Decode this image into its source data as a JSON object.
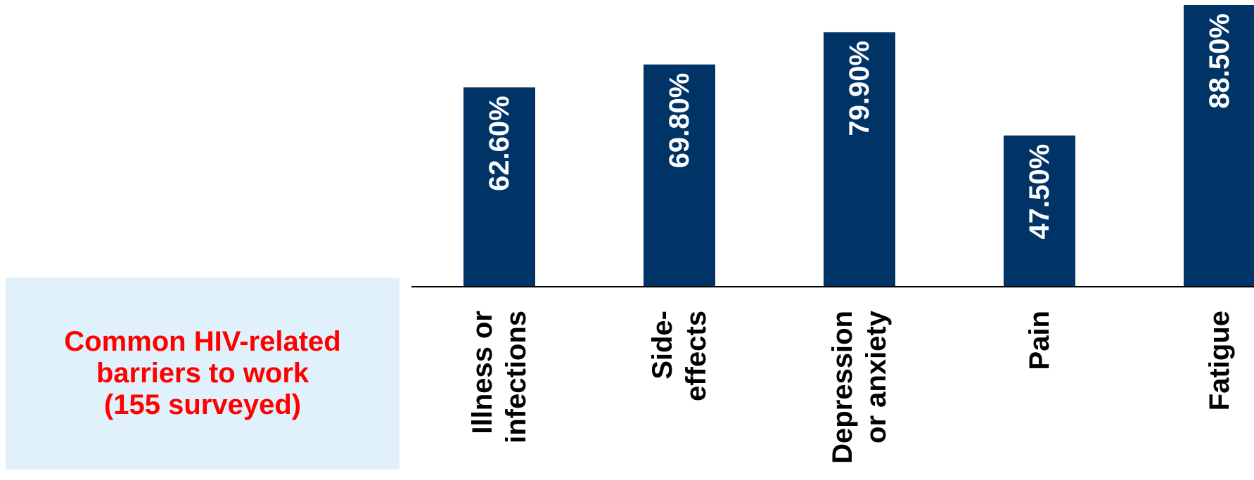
{
  "chart_data": {
    "type": "bar",
    "categories": [
      [
        "Illness or",
        "infections"
      ],
      [
        "Side-",
        "effects"
      ],
      [
        "Depression",
        "or anxiety"
      ],
      [
        "Pain"
      ],
      [
        "Fatigue"
      ]
    ],
    "values": [
      62.6,
      69.8,
      79.9,
      47.5,
      88.5
    ],
    "data_labels": [
      "62.60%",
      "69.80%",
      "79.90%",
      "47.50%",
      "88.50%"
    ],
    "bar_color": "#003366",
    "label_color": "#ffffff",
    "ylim": [
      0,
      88.5
    ],
    "grid": false,
    "legend": "none"
  },
  "caption": {
    "lines": [
      "Common HIV-related",
      "barriers to work",
      "(155 surveyed)"
    ],
    "color": "#ff0000",
    "background": "#e0f1fb"
  }
}
